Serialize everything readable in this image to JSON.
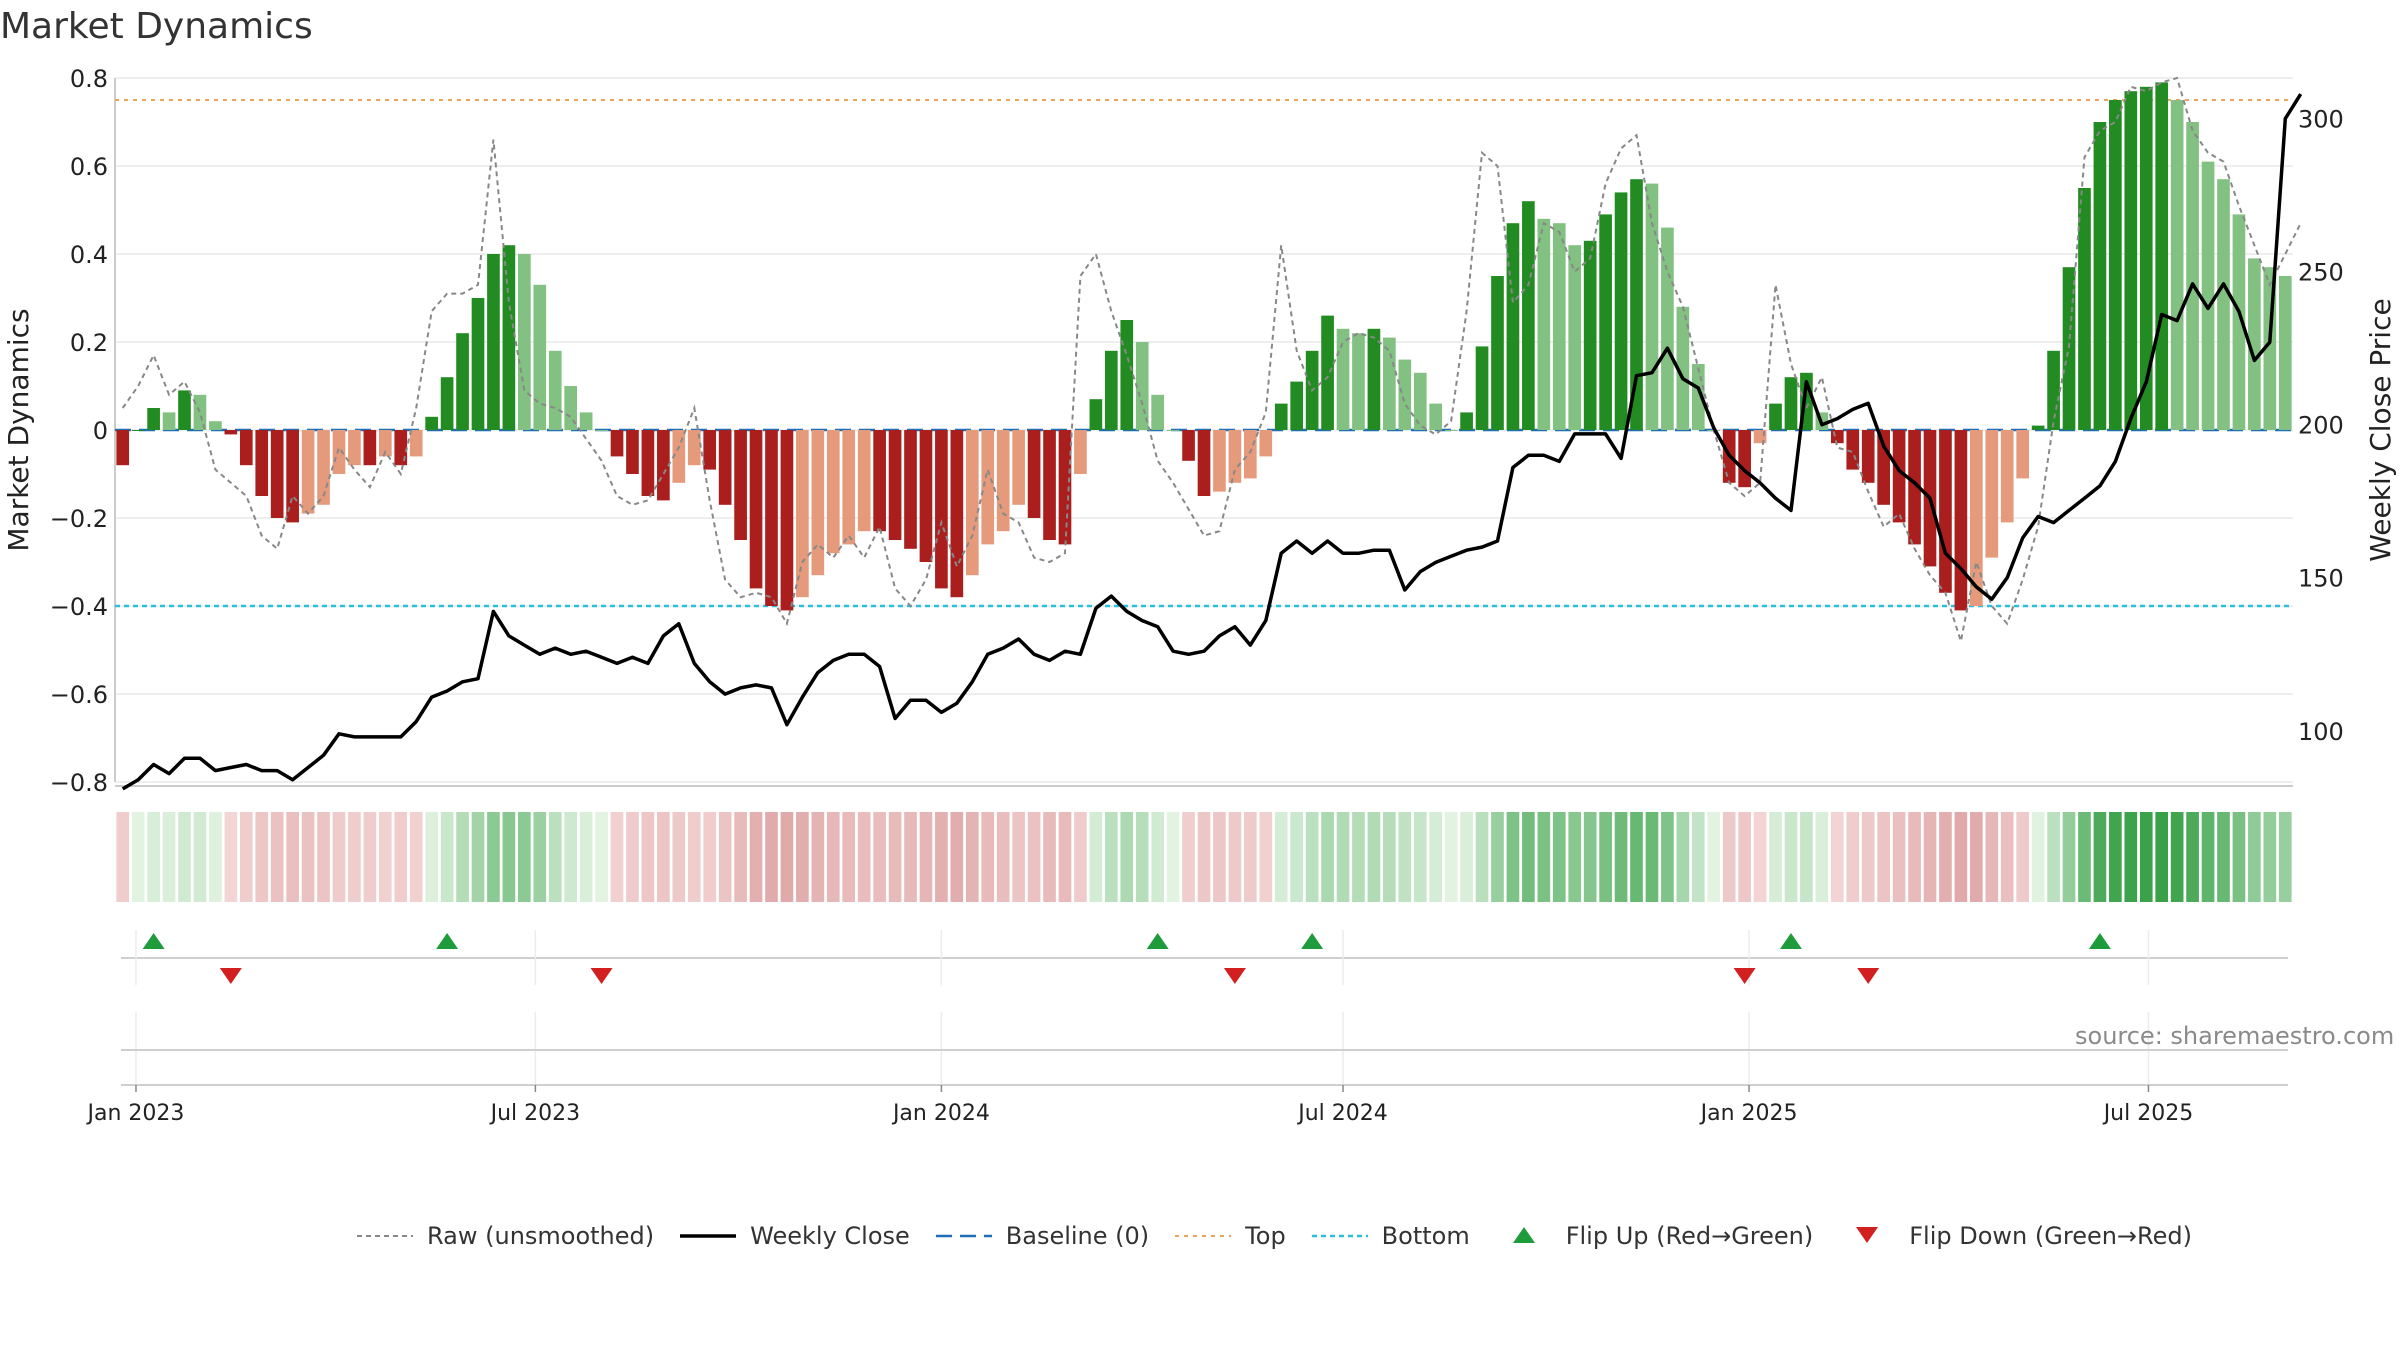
{
  "title": "Market Dynamics",
  "source": "source: sharemaestro.com",
  "colors": {
    "green_dark": "#228B22",
    "green_light": "#82C182",
    "red_dark": "#AA1E1E",
    "red_light": "#E59A7C",
    "raw": "#888888",
    "close": "#000000",
    "baseline": "#1F6FB4",
    "top": "#E8A45A",
    "bottom": "#2CC0D8",
    "flip_up": "#1E9C3C",
    "flip_down": "#D22020"
  },
  "chart_data": {
    "type": "bar",
    "title": "Market Dynamics",
    "ylabel": "Market Dynamics",
    "ylabel_right": "Weekly Close Price",
    "ylim": [
      -0.8,
      0.8
    ],
    "ylim_right": [
      80,
      310
    ],
    "y_ticks": [
      0.8,
      0.6,
      0.4,
      0.2,
      0,
      -0.2,
      -0.4,
      -0.6,
      -0.8
    ],
    "y_tick_labels": [
      "0.8",
      "0.6",
      "0.4",
      "0.2",
      "0",
      "−0.2",
      "−0.4",
      "−0.6",
      "−0.8"
    ],
    "y2_ticks": [
      300,
      250,
      200,
      150,
      100
    ],
    "y2_tick_labels": [
      "300",
      "250",
      "200",
      "150",
      "100"
    ],
    "x_ticks": [
      "2023-01-01",
      "2023-07-01",
      "2024-01-01",
      "2024-07-01",
      "2025-01-01",
      "2025-07-01"
    ],
    "x_tick_labels": [
      "Jan 2023",
      "Jul 2023",
      "Jan 2024",
      "Jul 2024",
      "Jan 2025",
      "Jul 2025"
    ],
    "start_date": "2022-12-26",
    "frequency": "weekly",
    "top_level": 0.75,
    "bottom_level": -0.4,
    "baseline": 0,
    "dynamics": [
      -0.08,
      0.0,
      0.05,
      0.04,
      0.09,
      0.08,
      0.02,
      -0.01,
      -0.08,
      -0.15,
      -0.2,
      -0.21,
      -0.19,
      -0.17,
      -0.1,
      -0.08,
      -0.08,
      -0.06,
      -0.08,
      -0.06,
      0.03,
      0.12,
      0.22,
      0.3,
      0.4,
      0.42,
      0.4,
      0.33,
      0.18,
      0.1,
      0.04,
      0.0,
      -0.06,
      -0.1,
      -0.15,
      -0.16,
      -0.12,
      -0.08,
      -0.09,
      -0.17,
      -0.25,
      -0.36,
      -0.4,
      -0.41,
      -0.38,
      -0.33,
      -0.28,
      -0.26,
      -0.23,
      -0.23,
      -0.25,
      -0.27,
      -0.3,
      -0.36,
      -0.38,
      -0.33,
      -0.26,
      -0.23,
      -0.17,
      -0.2,
      -0.25,
      -0.26,
      -0.1,
      0.07,
      0.18,
      0.25,
      0.2,
      0.08,
      0.0,
      -0.07,
      -0.15,
      -0.14,
      -0.12,
      -0.11,
      -0.06,
      0.06,
      0.11,
      0.18,
      0.26,
      0.23,
      0.22,
      0.23,
      0.21,
      0.16,
      0.13,
      0.06,
      0.0,
      0.04,
      0.19,
      0.35,
      0.47,
      0.52,
      0.48,
      0.47,
      0.42,
      0.43,
      0.49,
      0.54,
      0.57,
      0.56,
      0.46,
      0.28,
      0.15,
      0.0,
      -0.12,
      -0.13,
      -0.03,
      0.06,
      0.12,
      0.13,
      0.04,
      -0.03,
      -0.09,
      -0.12,
      -0.17,
      -0.21,
      -0.26,
      -0.31,
      -0.37,
      -0.41,
      -0.4,
      -0.29,
      -0.21,
      -0.11,
      0.01,
      0.18,
      0.37,
      0.55,
      0.7,
      0.75,
      0.77,
      0.78,
      0.79,
      0.75,
      0.7,
      0.61,
      0.57,
      0.49,
      0.39,
      0.37,
      0.35
    ],
    "raw": [
      0.05,
      0.1,
      0.17,
      0.08,
      0.11,
      0.04,
      -0.09,
      -0.12,
      -0.15,
      -0.24,
      -0.27,
      -0.15,
      -0.19,
      -0.15,
      -0.04,
      -0.09,
      -0.13,
      -0.05,
      -0.1,
      0.05,
      0.27,
      0.31,
      0.31,
      0.33,
      0.66,
      0.29,
      0.09,
      0.06,
      0.05,
      0.03,
      -0.02,
      -0.07,
      -0.15,
      -0.17,
      -0.16,
      -0.1,
      -0.04,
      0.05,
      -0.16,
      -0.34,
      -0.38,
      -0.37,
      -0.38,
      -0.44,
      -0.3,
      -0.26,
      -0.29,
      -0.24,
      -0.29,
      -0.22,
      -0.36,
      -0.4,
      -0.34,
      -0.21,
      -0.31,
      -0.24,
      -0.09,
      -0.19,
      -0.21,
      -0.29,
      -0.3,
      -0.28,
      0.35,
      0.4,
      0.27,
      0.17,
      0.06,
      -0.07,
      -0.12,
      -0.18,
      -0.24,
      -0.23,
      -0.09,
      -0.05,
      0.04,
      0.42,
      0.18,
      0.09,
      0.12,
      0.2,
      0.22,
      0.21,
      0.18,
      0.06,
      0.01,
      -0.01,
      0.02,
      0.27,
      0.63,
      0.6,
      0.29,
      0.33,
      0.47,
      0.45,
      0.36,
      0.39,
      0.56,
      0.64,
      0.67,
      0.47,
      0.36,
      0.28,
      0.14,
      0.0,
      -0.12,
      -0.15,
      -0.12,
      0.33,
      0.15,
      0.05,
      0.12,
      -0.04,
      -0.05,
      -0.14,
      -0.22,
      -0.19,
      -0.27,
      -0.33,
      -0.37,
      -0.48,
      -0.3,
      -0.4,
      -0.44,
      -0.34,
      -0.22,
      0.02,
      0.19,
      0.62,
      0.68,
      0.7,
      0.78,
      0.77,
      0.79,
      0.8,
      0.68,
      0.63,
      0.61,
      0.51,
      0.42,
      0.33,
      0.4,
      0.47
    ],
    "close": [
      81,
      84,
      89,
      86,
      91,
      91,
      87,
      88,
      89,
      87,
      87,
      84,
      88,
      92,
      99,
      98,
      98,
      98,
      98,
      103,
      111,
      113,
      116,
      117,
      139,
      131,
      128,
      125,
      127,
      125,
      126,
      124,
      122,
      124,
      122,
      131,
      135,
      122,
      116,
      112,
      114,
      115,
      114,
      102,
      111,
      119,
      123,
      125,
      125,
      121,
      104,
      110,
      110,
      106,
      109,
      116,
      125,
      127,
      130,
      125,
      123,
      126,
      125,
      140,
      144,
      139,
      136,
      134,
      126,
      125,
      126,
      131,
      134,
      128,
      136,
      158,
      162,
      158,
      162,
      158,
      158,
      159,
      159,
      146,
      152,
      155,
      157,
      159,
      160,
      162,
      186,
      190,
      190,
      188,
      197,
      197,
      197,
      189,
      216,
      217,
      225,
      215,
      212,
      199,
      190,
      185,
      181,
      176,
      172,
      214,
      200,
      202,
      205,
      207,
      193,
      185,
      181,
      176,
      158,
      153,
      147,
      143,
      150,
      163,
      170,
      168,
      172,
      176,
      180,
      188,
      202,
      214,
      236,
      234,
      246,
      238,
      246,
      237,
      221,
      227,
      300,
      308
    ],
    "flip_up": [
      "2023-01-09",
      "2023-05-22",
      "2024-04-08",
      "2024-06-17",
      "2025-01-20",
      "2025-06-09"
    ],
    "flip_down": [
      "2023-02-13",
      "2023-07-31",
      "2024-05-13",
      "2024-12-30",
      "2025-02-24"
    ],
    "legend": [
      {
        "key": "raw",
        "label": "Raw (unsmoothed)"
      },
      {
        "key": "close",
        "label": "Weekly Close"
      },
      {
        "key": "baseline",
        "label": "Baseline (0)"
      },
      {
        "key": "top",
        "label": "Top"
      },
      {
        "key": "bottom",
        "label": "Bottom"
      },
      {
        "key": "flip_up",
        "label": "Flip Up (Red→Green)"
      },
      {
        "key": "flip_down",
        "label": "Flip Down (Green→Red)"
      }
    ]
  }
}
